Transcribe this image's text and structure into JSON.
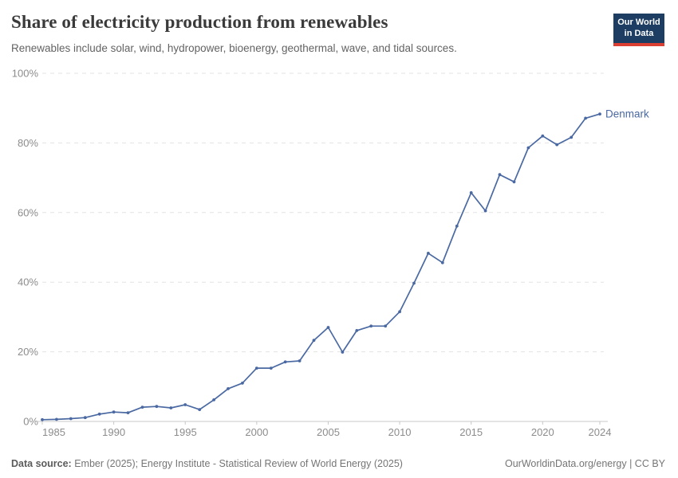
{
  "header": {
    "title": "Share of electricity production from renewables",
    "subtitle": "Renewables include solar, wind, hydropower, bioenergy, geothermal, wave, and tidal sources.",
    "logo": {
      "line1": "Our World",
      "line2": "in Data",
      "bg_color": "#1d3d63",
      "accent_color": "#dc3e32"
    }
  },
  "chart_data": {
    "type": "line",
    "title": "Share of electricity production from renewables",
    "xlabel": "",
    "ylabel": "",
    "ylim": [
      0,
      100
    ],
    "xlim": [
      1985,
      2024
    ],
    "grid": "horizontal-dashed",
    "legend_position": "end-of-line-label",
    "x_ticks": [
      1985,
      1990,
      1995,
      2000,
      2005,
      2010,
      2015,
      2020,
      2024
    ],
    "y_ticks": [
      0,
      20,
      40,
      60,
      80,
      100
    ],
    "y_tick_labels": [
      "0%",
      "20%",
      "40%",
      "60%",
      "80%",
      "100%"
    ],
    "series": [
      {
        "name": "Denmark",
        "color": "#4a69a2",
        "x": [
          1985,
          1986,
          1987,
          1988,
          1989,
          1990,
          1991,
          1992,
          1993,
          1994,
          1995,
          1996,
          1997,
          1998,
          1999,
          2000,
          2001,
          2002,
          2003,
          2004,
          2005,
          2006,
          2007,
          2008,
          2009,
          2010,
          2011,
          2012,
          2013,
          2014,
          2015,
          2016,
          2017,
          2018,
          2019,
          2020,
          2021,
          2022,
          2023,
          2024
        ],
        "values": [
          0.5,
          0.6,
          0.8,
          1.1,
          2.1,
          2.7,
          2.5,
          4.1,
          4.3,
          3.9,
          4.8,
          3.4,
          6.2,
          9.4,
          11.0,
          15.3,
          15.3,
          17.1,
          17.4,
          23.3,
          27.0,
          19.9,
          26.1,
          27.4,
          27.4,
          31.5,
          39.7,
          48.3,
          45.6,
          56.1,
          65.7,
          60.5,
          70.9,
          68.8,
          78.6,
          82.0,
          79.5,
          81.6,
          87.1,
          88.3
        ]
      }
    ]
  },
  "footer": {
    "source_label": "Data source:",
    "source_text": "Ember (2025); Energy Institute - Statistical Review of World Energy (2025)",
    "credit": "OurWorldinData.org/energy | CC BY"
  }
}
